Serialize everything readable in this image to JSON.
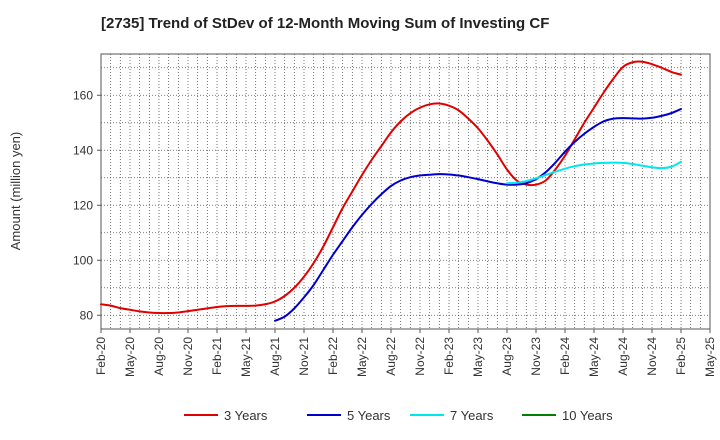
{
  "chart_data": {
    "type": "line",
    "title": "[2735]  Trend of StDev of 12-Month Moving Sum of Investing CF",
    "xlabel": "",
    "ylabel": "Amount (million yen)",
    "ylim": [
      75,
      175
    ],
    "yticks": [
      80,
      100,
      120,
      140,
      160
    ],
    "xlim": [
      "2020-02",
      "2025-05"
    ],
    "x_tick_labels": [
      "Feb-20",
      "May-20",
      "Aug-20",
      "Nov-20",
      "Feb-21",
      "May-21",
      "Aug-21",
      "Nov-21",
      "Feb-22",
      "May-22",
      "Aug-22",
      "Nov-22",
      "Feb-23",
      "May-23",
      "Aug-23",
      "Nov-23",
      "Feb-24",
      "May-24",
      "Aug-24",
      "Nov-24",
      "Feb-25",
      "May-25"
    ],
    "grid": true,
    "legend_position": "bottom",
    "series": [
      {
        "name": "3 Years",
        "color": "#e00000",
        "points": [
          [
            "2020-02",
            84
          ],
          [
            "2020-03",
            83.5
          ],
          [
            "2020-04",
            82.6
          ],
          [
            "2020-05",
            82
          ],
          [
            "2020-06",
            81.4
          ],
          [
            "2020-07",
            81
          ],
          [
            "2020-08",
            80.8
          ],
          [
            "2020-09",
            80.8
          ],
          [
            "2020-10",
            81
          ],
          [
            "2020-11",
            81.5
          ],
          [
            "2020-12",
            82
          ],
          [
            "2021-01",
            82.5
          ],
          [
            "2021-02",
            83
          ],
          [
            "2021-03",
            83.3
          ],
          [
            "2021-04",
            83.4
          ],
          [
            "2021-05",
            83.4
          ],
          [
            "2021-06",
            83.5
          ],
          [
            "2021-07",
            84
          ],
          [
            "2021-08",
            85
          ],
          [
            "2021-09",
            87
          ],
          [
            "2021-10",
            90
          ],
          [
            "2021-11",
            94
          ],
          [
            "2021-12",
            99
          ],
          [
            "2022-01",
            105
          ],
          [
            "2022-02",
            112
          ],
          [
            "2022-03",
            119
          ],
          [
            "2022-04",
            125
          ],
          [
            "2022-05",
            131
          ],
          [
            "2022-06",
            136.5
          ],
          [
            "2022-07",
            141.5
          ],
          [
            "2022-08",
            146.5
          ],
          [
            "2022-09",
            150.5
          ],
          [
            "2022-10",
            153.5
          ],
          [
            "2022-11",
            155.5
          ],
          [
            "2022-12",
            156.7
          ],
          [
            "2023-01",
            157
          ],
          [
            "2023-02",
            156.2
          ],
          [
            "2023-03",
            154.5
          ],
          [
            "2023-04",
            151.5
          ],
          [
            "2023-05",
            148
          ],
          [
            "2023-06",
            143.5
          ],
          [
            "2023-07",
            138.5
          ],
          [
            "2023-08",
            133
          ],
          [
            "2023-09",
            129
          ],
          [
            "2023-10",
            127.5
          ],
          [
            "2023-11",
            127.5
          ],
          [
            "2023-12",
            129
          ],
          [
            "2024-01",
            133
          ],
          [
            "2024-02",
            138
          ],
          [
            "2024-03",
            144
          ],
          [
            "2024-04",
            150
          ],
          [
            "2024-05",
            155.5
          ],
          [
            "2024-06",
            161
          ],
          [
            "2024-07",
            166
          ],
          [
            "2024-08",
            170.3
          ],
          [
            "2024-09",
            172
          ],
          [
            "2024-10",
            172.2
          ],
          [
            "2024-11",
            171.3
          ],
          [
            "2024-12",
            170
          ],
          [
            "2025-01",
            168.5
          ],
          [
            "2025-02",
            167.5
          ]
        ]
      },
      {
        "name": "5 Years",
        "color": "#0000cc",
        "points": [
          [
            "2021-08",
            78
          ],
          [
            "2021-09",
            79.5
          ],
          [
            "2021-10",
            82.5
          ],
          [
            "2021-11",
            86.5
          ],
          [
            "2021-12",
            91
          ],
          [
            "2022-01",
            96.5
          ],
          [
            "2022-02",
            102
          ],
          [
            "2022-03",
            107
          ],
          [
            "2022-04",
            112
          ],
          [
            "2022-05",
            116.5
          ],
          [
            "2022-06",
            120.5
          ],
          [
            "2022-07",
            124
          ],
          [
            "2022-08",
            127
          ],
          [
            "2022-09",
            129
          ],
          [
            "2022-10",
            130.2
          ],
          [
            "2022-11",
            130.8
          ],
          [
            "2022-12",
            131.1
          ],
          [
            "2023-01",
            131.3
          ],
          [
            "2023-02",
            131.2
          ],
          [
            "2023-03",
            130.8
          ],
          [
            "2023-04",
            130.2
          ],
          [
            "2023-05",
            129.5
          ],
          [
            "2023-06",
            128.7
          ],
          [
            "2023-07",
            128
          ],
          [
            "2023-08",
            127.5
          ],
          [
            "2023-09",
            127.5
          ],
          [
            "2023-10",
            128
          ],
          [
            "2023-11",
            129.5
          ],
          [
            "2023-12",
            132
          ],
          [
            "2024-01",
            135.5
          ],
          [
            "2024-02",
            139.5
          ],
          [
            "2024-03",
            143
          ],
          [
            "2024-04",
            146
          ],
          [
            "2024-05",
            148.5
          ],
          [
            "2024-06",
            150.5
          ],
          [
            "2024-07",
            151.5
          ],
          [
            "2024-08",
            151.7
          ],
          [
            "2024-09",
            151.6
          ],
          [
            "2024-10",
            151.5
          ],
          [
            "2024-11",
            151.8
          ],
          [
            "2024-12",
            152.5
          ],
          [
            "2025-01",
            153.5
          ],
          [
            "2025-02",
            155
          ]
        ]
      },
      {
        "name": "7 Years",
        "color": "#00e5ee",
        "points": [
          [
            "2023-08",
            128
          ],
          [
            "2023-09",
            128.2
          ],
          [
            "2023-10",
            128.8
          ],
          [
            "2023-11",
            129.8
          ],
          [
            "2023-12",
            131
          ],
          [
            "2024-01",
            132.2
          ],
          [
            "2024-02",
            133.3
          ],
          [
            "2024-03",
            134.2
          ],
          [
            "2024-04",
            134.8
          ],
          [
            "2024-05",
            135.2
          ],
          [
            "2024-06",
            135.4
          ],
          [
            "2024-07",
            135.5
          ],
          [
            "2024-08",
            135.4
          ],
          [
            "2024-09",
            135
          ],
          [
            "2024-10",
            134.4
          ],
          [
            "2024-11",
            133.8
          ],
          [
            "2024-12",
            133.5
          ],
          [
            "2025-01",
            134
          ],
          [
            "2025-02",
            135.8
          ]
        ]
      },
      {
        "name": "10 Years",
        "color": "#008000",
        "points": []
      }
    ]
  }
}
